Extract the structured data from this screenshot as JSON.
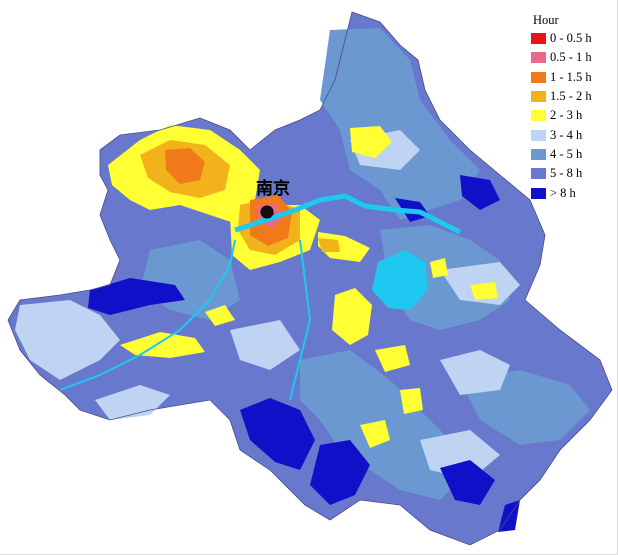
{
  "map": {
    "city": {
      "name": "南京",
      "marker_icon": "city-dot-icon"
    }
  },
  "legend": {
    "title": "Hour",
    "items": [
      {
        "label": "0 - 0.5 h",
        "color": "#e8141c"
      },
      {
        "label": "0.5 - 1 h",
        "color": "#e86a88"
      },
      {
        "label": "1 - 1.5 h",
        "color": "#f07a1a"
      },
      {
        "label": "1.5 - 2 h",
        "color": "#f2b21c"
      },
      {
        "label": "2 - 3 h",
        "color": "#ffff33"
      },
      {
        "label": "3 - 4 h",
        "color": "#bfd3f2"
      },
      {
        "label": "4 - 5 h",
        "color": "#6b98d0"
      },
      {
        "label": "5 - 8 h",
        "color": "#6878cc"
      },
      {
        "label": "> 8 h",
        "color": "#1010c8"
      }
    ]
  },
  "colors": {
    "water": "#1ec8f0",
    "region_boundary": "#4a4a8a",
    "background": "#ffffff"
  }
}
